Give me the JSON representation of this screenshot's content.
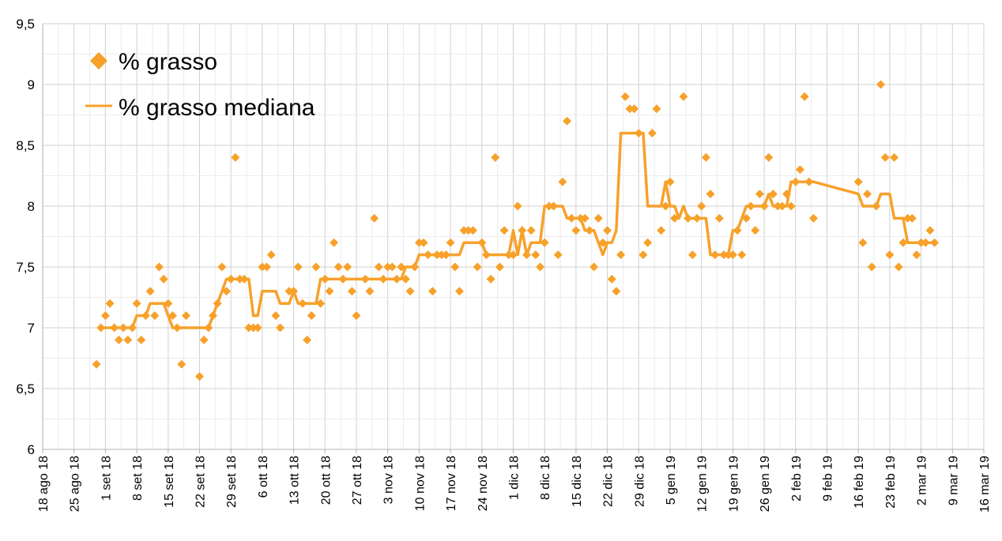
{
  "chart_data": {
    "type": "scatter",
    "title": "",
    "xlabel": "",
    "ylabel": "",
    "xlim": [
      "2018-08-18",
      "2019-03-16"
    ],
    "ylim": [
      6,
      9.5
    ],
    "grid": true,
    "legend_position": "top-left",
    "y_ticks": [
      "6",
      "6,5",
      "7",
      "7,5",
      "8",
      "8,5",
      "9",
      "9,5"
    ],
    "x_ticks": [
      "18 ago 18",
      "25 ago 18",
      "1 set 18",
      "8 set 18",
      "15 set 18",
      "22 set 18",
      "29 set 18",
      "6 ott 18",
      "13 ott 18",
      "20 ott 18",
      "27 ott 18",
      "3 nov 18",
      "10 nov 18",
      "17 nov 18",
      "24 nov 18",
      "1 dic 18",
      "8 dic 18",
      "15 dic 18",
      "22 dic 18",
      "29 dic 18",
      "5 gen 19",
      "12 gen 19",
      "19 gen 19",
      "26 gen 19",
      "2 feb 19",
      "9 feb 19",
      "16 feb 19",
      "23 feb 19",
      "2 mar 19",
      "9 mar 19",
      "16 mar 19"
    ],
    "colors": {
      "series": "#f7a12a",
      "grid": "#d0d0d0"
    },
    "series": [
      {
        "name": "% grasso",
        "type": "scatter",
        "marker": "diamond",
        "points": [
          [
            "2018-08-30",
            6.7
          ],
          [
            "2018-08-31",
            7.0
          ],
          [
            "2018-09-01",
            7.1
          ],
          [
            "2018-09-02",
            7.2
          ],
          [
            "2018-09-03",
            7.0
          ],
          [
            "2018-09-04",
            6.9
          ],
          [
            "2018-09-05",
            7.0
          ],
          [
            "2018-09-06",
            6.9
          ],
          [
            "2018-09-07",
            7.0
          ],
          [
            "2018-09-08",
            7.2
          ],
          [
            "2018-09-09",
            6.9
          ],
          [
            "2018-09-10",
            7.1
          ],
          [
            "2018-09-11",
            7.3
          ],
          [
            "2018-09-12",
            7.1
          ],
          [
            "2018-09-13",
            7.5
          ],
          [
            "2018-09-14",
            7.4
          ],
          [
            "2018-09-15",
            7.2
          ],
          [
            "2018-09-16",
            7.1
          ],
          [
            "2018-09-17",
            7.0
          ],
          [
            "2018-09-18",
            6.7
          ],
          [
            "2018-09-19",
            7.1
          ],
          [
            "2018-09-22",
            6.6
          ],
          [
            "2018-09-23",
            6.9
          ],
          [
            "2018-09-24",
            7.0
          ],
          [
            "2018-09-25",
            7.1
          ],
          [
            "2018-09-26",
            7.2
          ],
          [
            "2018-09-27",
            7.5
          ],
          [
            "2018-09-28",
            7.3
          ],
          [
            "2018-09-29",
            7.4
          ],
          [
            "2018-09-30",
            8.4
          ],
          [
            "2018-10-01",
            7.4
          ],
          [
            "2018-10-02",
            7.4
          ],
          [
            "2018-10-03",
            7.0
          ],
          [
            "2018-10-04",
            7.0
          ],
          [
            "2018-10-05",
            7.0
          ],
          [
            "2018-10-06",
            7.5
          ],
          [
            "2018-10-07",
            7.5
          ],
          [
            "2018-10-08",
            7.6
          ],
          [
            "2018-10-09",
            7.1
          ],
          [
            "2018-10-10",
            7.0
          ],
          [
            "2018-10-12",
            7.3
          ],
          [
            "2018-10-13",
            7.3
          ],
          [
            "2018-10-14",
            7.5
          ],
          [
            "2018-10-15",
            7.2
          ],
          [
            "2018-10-16",
            6.9
          ],
          [
            "2018-10-17",
            7.1
          ],
          [
            "2018-10-18",
            7.5
          ],
          [
            "2018-10-19",
            7.2
          ],
          [
            "2018-10-20",
            7.4
          ],
          [
            "2018-10-21",
            7.3
          ],
          [
            "2018-10-22",
            7.7
          ],
          [
            "2018-10-23",
            7.5
          ],
          [
            "2018-10-24",
            7.4
          ],
          [
            "2018-10-25",
            7.5
          ],
          [
            "2018-10-26",
            7.3
          ],
          [
            "2018-10-27",
            7.1
          ],
          [
            "2018-10-29",
            7.4
          ],
          [
            "2018-10-30",
            7.3
          ],
          [
            "2018-10-31",
            7.9
          ],
          [
            "2018-11-01",
            7.5
          ],
          [
            "2018-11-02",
            7.4
          ],
          [
            "2018-11-03",
            7.5
          ],
          [
            "2018-11-04",
            7.5
          ],
          [
            "2018-11-05",
            7.4
          ],
          [
            "2018-11-06",
            7.5
          ],
          [
            "2018-11-07",
            7.4
          ],
          [
            "2018-11-08",
            7.3
          ],
          [
            "2018-11-09",
            7.5
          ],
          [
            "2018-11-10",
            7.7
          ],
          [
            "2018-11-11",
            7.7
          ],
          [
            "2018-11-12",
            7.6
          ],
          [
            "2018-11-13",
            7.3
          ],
          [
            "2018-11-14",
            7.6
          ],
          [
            "2018-11-15",
            7.6
          ],
          [
            "2018-11-16",
            7.6
          ],
          [
            "2018-11-17",
            7.7
          ],
          [
            "2018-11-18",
            7.5
          ],
          [
            "2018-11-19",
            7.3
          ],
          [
            "2018-11-20",
            7.8
          ],
          [
            "2018-11-21",
            7.8
          ],
          [
            "2018-11-22",
            7.8
          ],
          [
            "2018-11-23",
            7.5
          ],
          [
            "2018-11-24",
            7.7
          ],
          [
            "2018-11-25",
            7.6
          ],
          [
            "2018-11-26",
            7.4
          ],
          [
            "2018-11-27",
            8.4
          ],
          [
            "2018-11-28",
            7.5
          ],
          [
            "2018-11-29",
            7.8
          ],
          [
            "2018-11-30",
            7.6
          ],
          [
            "2018-12-01",
            7.6
          ],
          [
            "2018-12-02",
            8.0
          ],
          [
            "2018-12-03",
            7.8
          ],
          [
            "2018-12-04",
            7.6
          ],
          [
            "2018-12-05",
            7.8
          ],
          [
            "2018-12-06",
            7.6
          ],
          [
            "2018-12-07",
            7.5
          ],
          [
            "2018-12-08",
            7.7
          ],
          [
            "2018-12-09",
            8.0
          ],
          [
            "2018-12-10",
            8.0
          ],
          [
            "2018-12-11",
            7.6
          ],
          [
            "2018-12-12",
            8.2
          ],
          [
            "2018-12-13",
            8.7
          ],
          [
            "2018-12-14",
            7.9
          ],
          [
            "2018-12-15",
            7.8
          ],
          [
            "2018-12-16",
            7.9
          ],
          [
            "2018-12-17",
            7.9
          ],
          [
            "2018-12-18",
            7.8
          ],
          [
            "2018-12-19",
            7.5
          ],
          [
            "2018-12-20",
            7.9
          ],
          [
            "2018-12-21",
            7.7
          ],
          [
            "2018-12-22",
            7.8
          ],
          [
            "2018-12-23",
            7.4
          ],
          [
            "2018-12-24",
            7.3
          ],
          [
            "2018-12-25",
            7.6
          ],
          [
            "2018-12-26",
            8.9
          ],
          [
            "2018-12-27",
            8.8
          ],
          [
            "2018-12-28",
            8.8
          ],
          [
            "2018-12-29",
            8.6
          ],
          [
            "2018-12-30",
            7.6
          ],
          [
            "2018-12-31",
            7.7
          ],
          [
            "2019-01-01",
            8.6
          ],
          [
            "2019-01-02",
            8.8
          ],
          [
            "2019-01-03",
            7.8
          ],
          [
            "2019-01-04",
            8.0
          ],
          [
            "2019-01-05",
            8.2
          ],
          [
            "2019-01-06",
            7.9
          ],
          [
            "2019-01-08",
            8.9
          ],
          [
            "2019-01-09",
            7.9
          ],
          [
            "2019-01-10",
            7.6
          ],
          [
            "2019-01-11",
            7.9
          ],
          [
            "2019-01-12",
            8.0
          ],
          [
            "2019-01-13",
            8.4
          ],
          [
            "2019-01-14",
            8.1
          ],
          [
            "2019-01-15",
            7.6
          ],
          [
            "2019-01-16",
            7.9
          ],
          [
            "2019-01-17",
            7.6
          ],
          [
            "2019-01-18",
            7.6
          ],
          [
            "2019-01-19",
            7.6
          ],
          [
            "2019-01-20",
            7.8
          ],
          [
            "2019-01-21",
            7.6
          ],
          [
            "2019-01-22",
            7.9
          ],
          [
            "2019-01-23",
            8.0
          ],
          [
            "2019-01-24",
            7.8
          ],
          [
            "2019-01-25",
            8.1
          ],
          [
            "2019-01-26",
            8.0
          ],
          [
            "2019-01-27",
            8.4
          ],
          [
            "2019-01-28",
            8.1
          ],
          [
            "2019-01-29",
            8.0
          ],
          [
            "2019-01-30",
            8.0
          ],
          [
            "2019-01-31",
            8.1
          ],
          [
            "2019-02-01",
            8.0
          ],
          [
            "2019-02-02",
            8.2
          ],
          [
            "2019-02-03",
            8.3
          ],
          [
            "2019-02-04",
            8.9
          ],
          [
            "2019-02-05",
            8.2
          ],
          [
            "2019-02-06",
            7.9
          ],
          [
            "2019-02-16",
            8.2
          ],
          [
            "2019-02-17",
            7.7
          ],
          [
            "2019-02-18",
            8.1
          ],
          [
            "2019-02-19",
            7.5
          ],
          [
            "2019-02-20",
            8.0
          ],
          [
            "2019-02-21",
            9.0
          ],
          [
            "2019-02-22",
            8.4
          ],
          [
            "2019-02-23",
            7.6
          ],
          [
            "2019-02-24",
            8.4
          ],
          [
            "2019-02-25",
            7.5
          ],
          [
            "2019-02-26",
            7.7
          ],
          [
            "2019-02-27",
            7.9
          ],
          [
            "2019-02-28",
            7.9
          ],
          [
            "2019-03-01",
            7.6
          ],
          [
            "2019-03-02",
            7.7
          ],
          [
            "2019-03-03",
            7.7
          ],
          [
            "2019-03-04",
            7.8
          ],
          [
            "2019-03-05",
            7.7
          ]
        ]
      },
      {
        "name": "% grasso mediana",
        "type": "line",
        "points": [
          [
            "2018-08-31",
            7.0
          ],
          [
            "2018-09-07",
            7.0
          ],
          [
            "2018-09-08",
            7.1
          ],
          [
            "2018-09-10",
            7.1
          ],
          [
            "2018-09-11",
            7.2
          ],
          [
            "2018-09-14",
            7.2
          ],
          [
            "2018-09-15",
            7.1
          ],
          [
            "2018-09-16",
            7.0
          ],
          [
            "2018-09-24",
            7.0
          ],
          [
            "2018-09-25",
            7.1
          ],
          [
            "2018-09-26",
            7.2
          ],
          [
            "2018-09-27",
            7.3
          ],
          [
            "2018-09-28",
            7.4
          ],
          [
            "2018-10-03",
            7.4
          ],
          [
            "2018-10-04",
            7.1
          ],
          [
            "2018-10-05",
            7.1
          ],
          [
            "2018-10-06",
            7.3
          ],
          [
            "2018-10-09",
            7.3
          ],
          [
            "2018-10-10",
            7.2
          ],
          [
            "2018-10-12",
            7.2
          ],
          [
            "2018-10-13",
            7.3
          ],
          [
            "2018-10-14",
            7.2
          ],
          [
            "2018-10-15",
            7.2
          ],
          [
            "2018-10-18",
            7.2
          ],
          [
            "2018-10-19",
            7.4
          ],
          [
            "2018-10-27",
            7.4
          ],
          [
            "2018-11-06",
            7.4
          ],
          [
            "2018-11-07",
            7.5
          ],
          [
            "2018-11-09",
            7.5
          ],
          [
            "2018-11-10",
            7.6
          ],
          [
            "2018-11-19",
            7.6
          ],
          [
            "2018-11-20",
            7.7
          ],
          [
            "2018-11-24",
            7.7
          ],
          [
            "2018-11-25",
            7.6
          ],
          [
            "2018-11-30",
            7.6
          ],
          [
            "2018-12-01",
            7.8
          ],
          [
            "2018-12-02",
            7.6
          ],
          [
            "2018-12-03",
            7.8
          ],
          [
            "2018-12-04",
            7.6
          ],
          [
            "2018-12-05",
            7.7
          ],
          [
            "2018-12-07",
            7.7
          ],
          [
            "2018-12-08",
            8.0
          ],
          [
            "2018-12-12",
            8.0
          ],
          [
            "2018-12-13",
            7.9
          ],
          [
            "2018-12-16",
            7.9
          ],
          [
            "2018-12-17",
            7.8
          ],
          [
            "2018-12-19",
            7.8
          ],
          [
            "2018-12-20",
            7.7
          ],
          [
            "2018-12-21",
            7.6
          ],
          [
            "2018-12-22",
            7.7
          ],
          [
            "2018-12-23",
            7.7
          ],
          [
            "2018-12-24",
            7.8
          ],
          [
            "2018-12-25",
            8.6
          ],
          [
            "2018-12-30",
            8.6
          ],
          [
            "2018-12-31",
            8.0
          ],
          [
            "2019-01-03",
            8.0
          ],
          [
            "2019-01-04",
            8.2
          ],
          [
            "2019-01-05",
            8.0
          ],
          [
            "2019-01-06",
            8.0
          ],
          [
            "2019-01-07",
            7.9
          ],
          [
            "2019-01-08",
            8.0
          ],
          [
            "2019-01-09",
            7.9
          ],
          [
            "2019-01-13",
            7.9
          ],
          [
            "2019-01-14",
            7.6
          ],
          [
            "2019-01-18",
            7.6
          ],
          [
            "2019-01-19",
            7.8
          ],
          [
            "2019-01-20",
            7.8
          ],
          [
            "2019-01-22",
            8.0
          ],
          [
            "2019-01-26",
            8.0
          ],
          [
            "2019-01-27",
            8.1
          ],
          [
            "2019-01-28",
            8.0
          ],
          [
            "2019-01-31",
            8.0
          ],
          [
            "2019-02-01",
            8.2
          ],
          [
            "2019-02-06",
            8.2
          ],
          [
            "2019-02-16",
            8.1
          ],
          [
            "2019-02-17",
            8.0
          ],
          [
            "2019-02-20",
            8.0
          ],
          [
            "2019-02-21",
            8.1
          ],
          [
            "2019-02-23",
            8.1
          ],
          [
            "2019-02-24",
            7.9
          ],
          [
            "2019-02-26",
            7.9
          ],
          [
            "2019-02-27",
            7.7
          ],
          [
            "2019-03-05",
            7.7
          ]
        ]
      }
    ]
  }
}
